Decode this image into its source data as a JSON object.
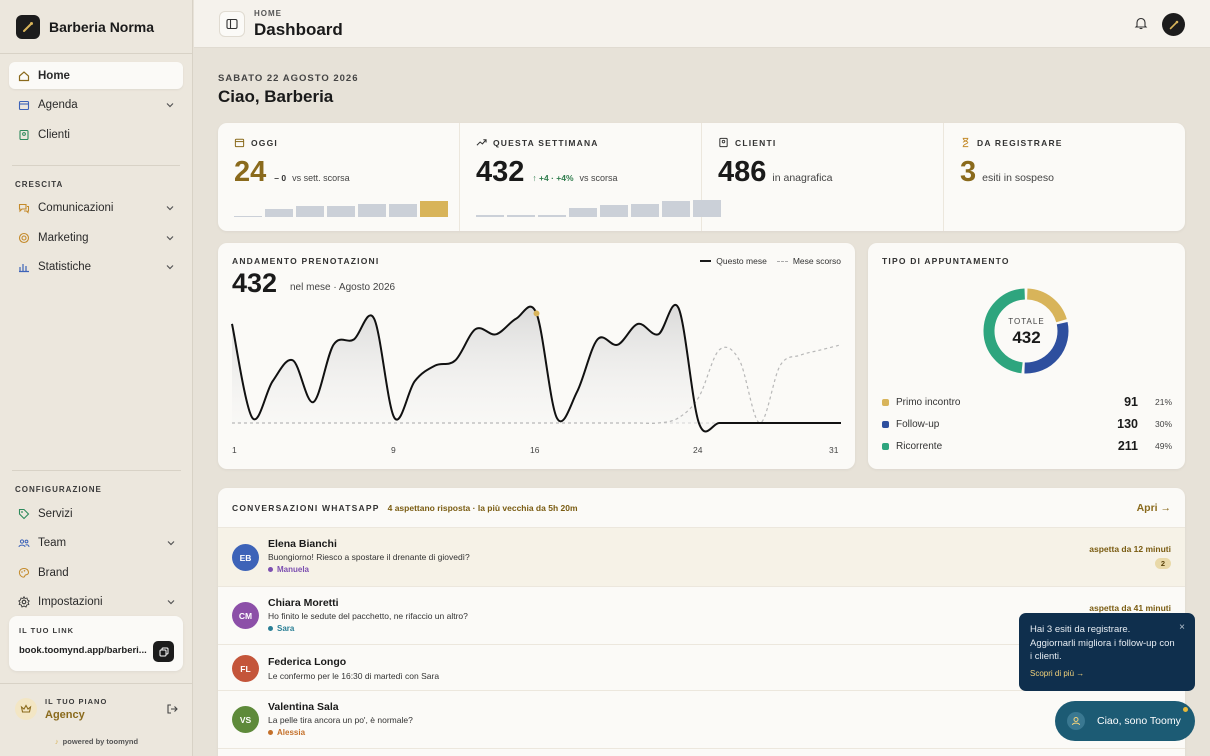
{
  "brand": {
    "name": "Barberia Norma"
  },
  "sidebar": {
    "main": [
      {
        "label": "Home",
        "active": true
      },
      {
        "label": "Agenda",
        "expandable": true
      },
      {
        "label": "Clienti"
      }
    ],
    "section_growth": "CRESCITA",
    "growth": [
      {
        "label": "Comunicazioni",
        "expandable": true
      },
      {
        "label": "Marketing",
        "expandable": true
      },
      {
        "label": "Statistiche",
        "expandable": true
      }
    ],
    "section_config": "CONFIGURAZIONE",
    "config": [
      {
        "label": "Servizi"
      },
      {
        "label": "Team",
        "expandable": true
      },
      {
        "label": "Brand"
      },
      {
        "label": "Impostazioni",
        "expandable": true
      }
    ],
    "link_card": {
      "label": "IL TUO LINK",
      "url": "book.toomynd.app/barberi..."
    },
    "plan": {
      "label": "IL TUO PIANO",
      "name": "Agency"
    },
    "powered": "powered by toomynd"
  },
  "header": {
    "breadcrumb": "HOME",
    "title": "Dashboard"
  },
  "greeting": {
    "date": "SABATO 22 AGOSTO 2026",
    "text": "Ciao, Barberia"
  },
  "stats": [
    {
      "label": "OGGI",
      "value": "24",
      "delta": "– 0",
      "sub": "vs sett. scorsa",
      "bars": [
        0.05,
        0.4,
        0.55,
        0.55,
        0.65,
        0.65,
        0.8
      ],
      "highlight_last": true
    },
    {
      "label": "QUESTA SETTIMANA",
      "value": "432",
      "delta": "+4 · +4%",
      "sub": "vs scorsa",
      "bars": [
        0.08,
        0.08,
        0.08,
        0.45,
        0.6,
        0.65,
        0.8,
        0.85
      ],
      "highlight_last": false
    },
    {
      "label": "CLIENTI",
      "value": "486",
      "sub": "in anagrafica"
    },
    {
      "label": "DA REGISTRARE",
      "value": "3",
      "sub": "esiti in sospeso"
    }
  ],
  "trend": {
    "title": "ANDAMENTO PRENOTAZIONI",
    "total": "432",
    "sub": "nel mese · Agosto 2026",
    "legend_current": "Questo mese",
    "legend_previous": "Mese scorso",
    "x_ticks": [
      "1",
      "9",
      "16",
      "24",
      "31"
    ]
  },
  "chart_data": {
    "type": "line",
    "title": "ANDAMENTO PRENOTAZIONI",
    "x": [
      1,
      2,
      3,
      4,
      5,
      6,
      7,
      8,
      9,
      10,
      11,
      12,
      13,
      14,
      15,
      16,
      17,
      18,
      19,
      20,
      21,
      22,
      23,
      24,
      25,
      26,
      27,
      28,
      29,
      30,
      31
    ],
    "series": [
      {
        "name": "Questo mese",
        "values": [
          95,
          5,
          40,
          60,
          20,
          75,
          80,
          100,
          5,
          40,
          55,
          60,
          90,
          85,
          100,
          105,
          5,
          30,
          80,
          75,
          95,
          85,
          110,
          0,
          0,
          0,
          0,
          0,
          0,
          0,
          0
        ]
      },
      {
        "name": "Mese scorso",
        "values": [
          0,
          0,
          0,
          0,
          0,
          0,
          0,
          0,
          0,
          0,
          0,
          0,
          0,
          0,
          0,
          0,
          0,
          0,
          0,
          0,
          0,
          0,
          5,
          25,
          70,
          60,
          0,
          55,
          65,
          70,
          75
        ]
      }
    ],
    "xlim": [
      1,
      31
    ],
    "grid": false,
    "legend": "top-right"
  },
  "donut": {
    "title": "TIPO DI APPUNTAMENTO",
    "center_label": "TOTALE",
    "total": "432",
    "items": [
      {
        "label": "Primo incontro",
        "count": "91",
        "pct": "21%",
        "color": "#d8b45a",
        "value": 91
      },
      {
        "label": "Follow-up",
        "count": "130",
        "pct": "30%",
        "color": "#2e4f9e",
        "value": 130
      },
      {
        "label": "Ricorrente",
        "count": "211",
        "pct": "49%",
        "color": "#2ea57e",
        "value": 211
      }
    ]
  },
  "conversations": {
    "title": "CONVERSAZIONI WHATSAPP",
    "sub": "4 aspettano risposta · la più vecchia da 5h 20m",
    "open": "Apri →",
    "rows": [
      {
        "initials": "EB",
        "avatar_color": "#3d63b8",
        "name": "Elena Bianchi",
        "msg": "Buongiorno! Riesco a spostare il drenante di giovedì?",
        "agent": "Manuela",
        "agent_color": "#7c4fb0",
        "wait": "aspetta da 12 minuti",
        "badge": "2"
      },
      {
        "initials": "CM",
        "avatar_color": "#8c4fa8",
        "name": "Chiara Moretti",
        "msg": "Ho finito le sedute del pacchetto, ne rifaccio un altro?",
        "agent": "Sara",
        "agent_color": "#2a7f95",
        "wait": "aspetta da 41 minuti"
      },
      {
        "initials": "FL",
        "avatar_color": "#c4553a",
        "name": "Federica Longo",
        "msg": "Le confermo per le 16:30 di martedì con Sara"
      },
      {
        "initials": "VS",
        "avatar_color": "#5e8a3a",
        "name": "Valentina Sala",
        "msg": "La pelle tira ancora un po', è normale?",
        "agent": "Alessia",
        "agent_color": "#c4702a"
      }
    ]
  },
  "toast": {
    "message": "Hai 3 esiti da registrare. Aggiornarli migliora i follow-up con i clienti.",
    "link": "Scopri di più →",
    "close": "×"
  },
  "assistant": {
    "label": "Ciao, sono Toomy"
  },
  "colors": {
    "accent": "#8a6a1c",
    "gold_bar": "#d8b45a",
    "navy": "#0f2f4d",
    "teal": "#1c5b74"
  }
}
